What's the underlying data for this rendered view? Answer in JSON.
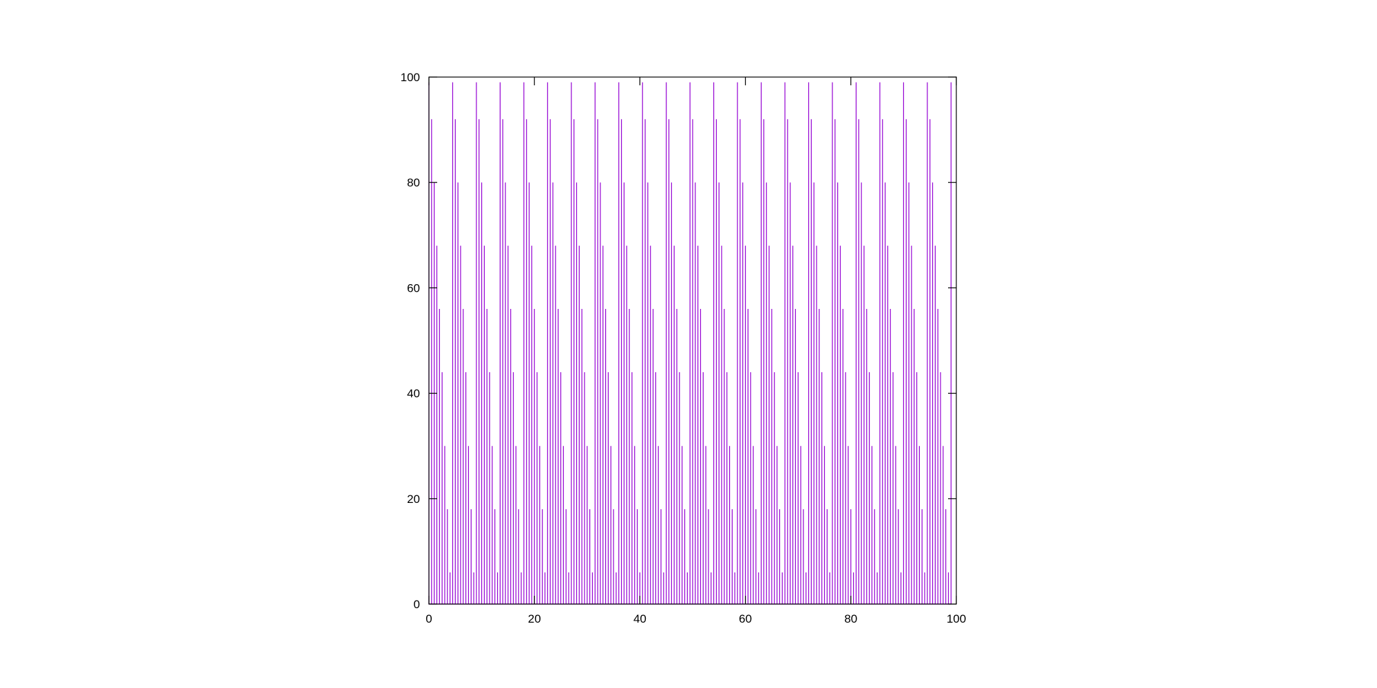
{
  "chart_data": {
    "type": "line",
    "title": "",
    "xlabel": "",
    "ylabel": "",
    "xlim": [
      0,
      100
    ],
    "ylim": [
      0,
      100
    ],
    "x_ticks": [
      "0",
      "20",
      "40",
      "60",
      "80",
      "100"
    ],
    "y_ticks": [
      "0",
      "20",
      "40",
      "60",
      "80",
      "100"
    ],
    "grid": false,
    "legend": "none",
    "series": [
      {
        "color": "#9400d3",
        "description": "dense oscillating signal, x from 0 to 99, y alternating between low and high values",
        "x_start": 0,
        "x_end": 99,
        "x_step": 0.5,
        "pattern": "y alternates 0 / high each step; high envelope cycles through levels",
        "y_levels_high": [
          99,
          92,
          80,
          68,
          56,
          44,
          30,
          18,
          6
        ]
      }
    ]
  },
  "colors": {
    "series": "#9400d3",
    "axis": "#000000",
    "background": "#ffffff"
  }
}
